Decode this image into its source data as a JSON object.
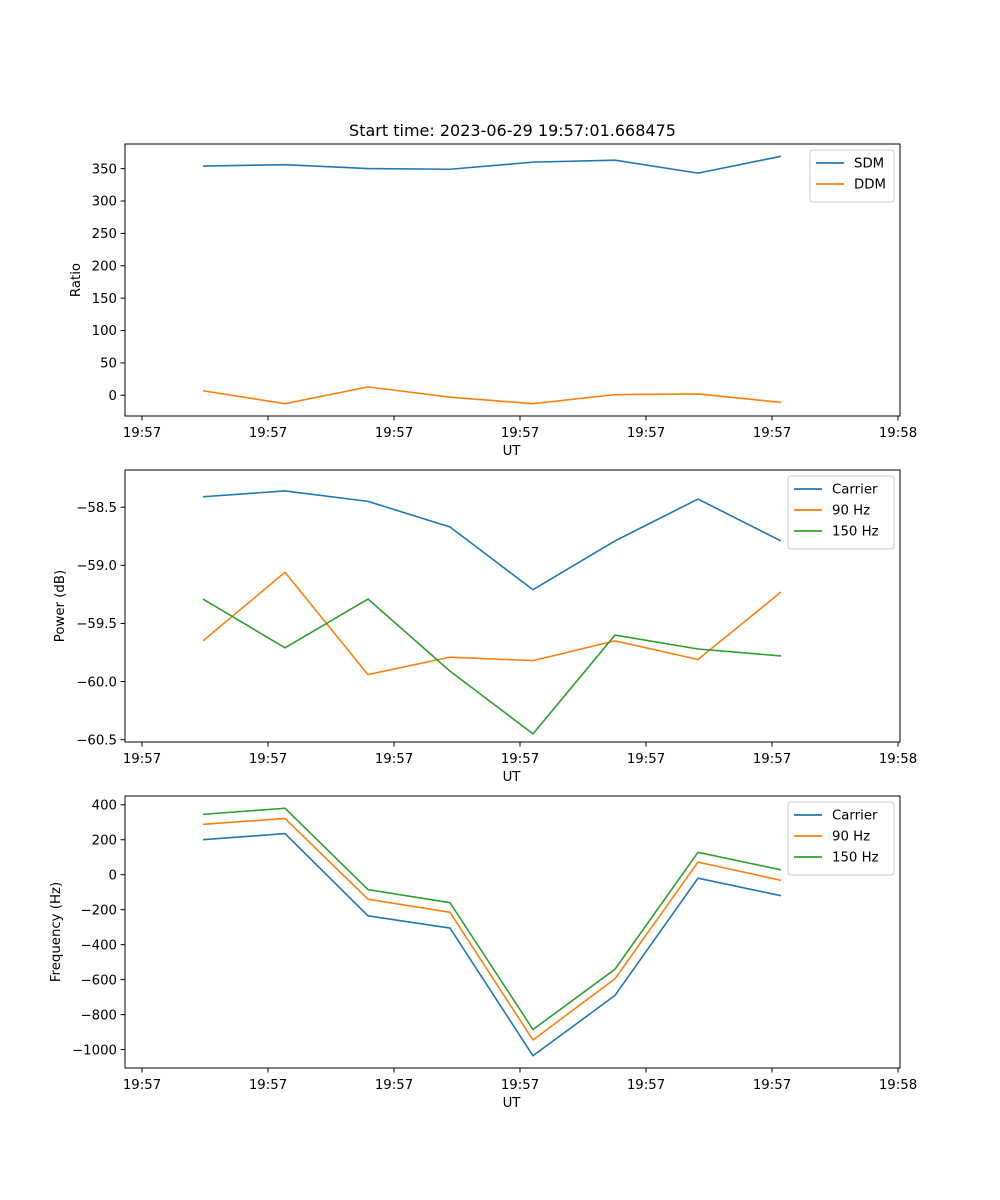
{
  "chart_data": [
    {
      "type": "line",
      "title": "Start time: 2023-06-29 19:57:01.668475",
      "xlabel": "UT",
      "ylabel": "Ratio",
      "x_tick_labels": [
        "19:57",
        "19:57",
        "19:57",
        "19:57",
        "19:57",
        "19:57",
        "19:58"
      ],
      "y_ticks": [
        0,
        50,
        100,
        150,
        200,
        250,
        300,
        350
      ],
      "ylim": [
        -32,
        388
      ],
      "legend_position": "top-right",
      "series": [
        {
          "name": "SDM",
          "color": "#1f77b4",
          "values": [
            354,
            356,
            350,
            349,
            360,
            363,
            343,
            369
          ]
        },
        {
          "name": "DDM",
          "color": "#ff7f0e",
          "values": [
            7,
            -13,
            13,
            -3,
            -13,
            1,
            2,
            -11
          ]
        }
      ]
    },
    {
      "type": "line",
      "title": "",
      "xlabel": "UT",
      "ylabel": "Power (dB)",
      "x_tick_labels": [
        "19:57",
        "19:57",
        "19:57",
        "19:57",
        "19:57",
        "19:57",
        "19:58"
      ],
      "y_ticks": [
        -58.5,
        -59.0,
        -59.5,
        -60.0,
        -60.5
      ],
      "y_tick_labels": [
        "−58.5",
        "−59.0",
        "−59.5",
        "−60.0",
        "−60.5"
      ],
      "ylim": [
        -60.52,
        -58.18
      ],
      "legend_position": "top-right",
      "series": [
        {
          "name": "Carrier",
          "color": "#1f77b4",
          "values": [
            -58.41,
            -58.36,
            -58.45,
            -58.67,
            -59.21,
            -58.79,
            -58.43,
            -58.79
          ]
        },
        {
          "name": "90 Hz",
          "color": "#ff7f0e",
          "values": [
            -59.65,
            -59.06,
            -59.94,
            -59.79,
            -59.82,
            -59.65,
            -59.81,
            -59.23
          ]
        },
        {
          "name": "150 Hz",
          "color": "#2ca02c",
          "values": [
            -59.29,
            -59.71,
            -59.29,
            -59.91,
            -60.45,
            -59.6,
            -59.72,
            -59.78
          ]
        }
      ]
    },
    {
      "type": "line",
      "title": "",
      "xlabel": "UT",
      "ylabel": "Frequency (Hz)",
      "x_tick_labels": [
        "19:57",
        "19:57",
        "19:57",
        "19:57",
        "19:57",
        "19:57",
        "19:58"
      ],
      "y_ticks": [
        400,
        200,
        0,
        -200,
        -400,
        -600,
        -800,
        -1000
      ],
      "y_tick_labels": [
        "400",
        "200",
        "0",
        "−200",
        "−400",
        "−600",
        "−800",
        "−1000"
      ],
      "ylim": [
        -1105,
        450
      ],
      "legend_position": "top-right",
      "series": [
        {
          "name": "Carrier",
          "color": "#1f77b4",
          "values": [
            200,
            235,
            -235,
            -305,
            -1035,
            -690,
            -20,
            -120
          ]
        },
        {
          "name": "90 Hz",
          "color": "#ff7f0e",
          "values": [
            288,
            322,
            -140,
            -215,
            -945,
            -595,
            72,
            -32
          ]
        },
        {
          "name": "150 Hz",
          "color": "#2ca02c",
          "values": [
            345,
            380,
            -85,
            -160,
            -885,
            -540,
            128,
            28
          ]
        }
      ]
    }
  ]
}
